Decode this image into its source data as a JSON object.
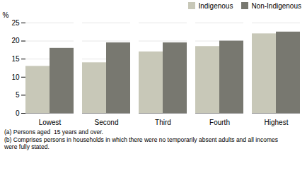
{
  "chart_data": {
    "type": "bar",
    "categories": [
      "Lowest",
      "Second",
      "Third",
      "Fourth",
      "Highest"
    ],
    "series": [
      {
        "name": "Indigenous",
        "color": "#c8c8b8",
        "values": [
          13.0,
          14.0,
          17.0,
          18.5,
          22.0
        ]
      },
      {
        "name": "Non-Indigenous",
        "color": "#787870",
        "values": [
          18.0,
          19.5,
          19.5,
          20.0,
          22.5
        ]
      }
    ],
    "ylabel": "%",
    "ylim": [
      0,
      25
    ],
    "yticks": [
      0,
      5,
      10,
      15,
      20,
      25
    ],
    "grid": true,
    "legend": "upper right",
    "annotations": [
      "(a) Persons aged  15 years and over.",
      "(b) Comprises persons in households in which there were no temporarily absent adults and all incomes",
      "were fully stated."
    ]
  }
}
